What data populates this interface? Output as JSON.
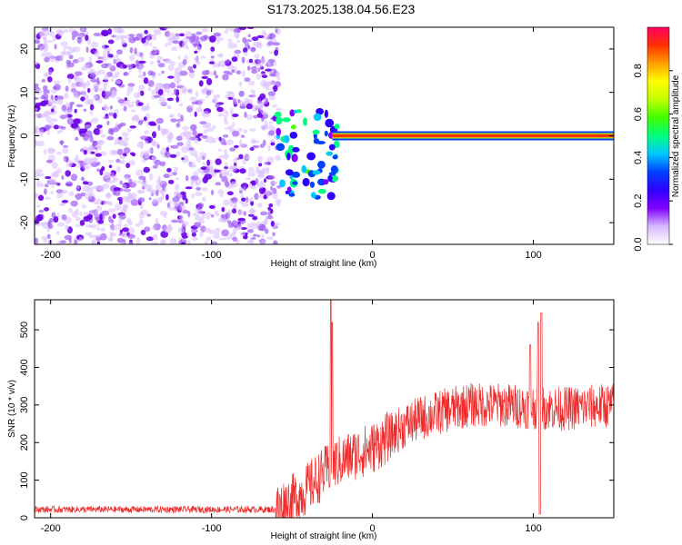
{
  "title": "S173.2025.138.04.56.E23",
  "chart_data": [
    {
      "type": "heatmap",
      "xlabel": "Height of straight line (km)",
      "ylabel": "Frequency (Hz)",
      "xlim": [
        -210,
        150
      ],
      "ylim": [
        -25,
        25
      ],
      "xticks": [
        -200,
        -100,
        0,
        100
      ],
      "yticks": [
        -20,
        -10,
        0,
        10,
        20
      ],
      "colorbar": {
        "label": "Normalized spectral amplitude",
        "range": [
          0,
          1
        ],
        "ticks": [
          "0.0",
          "0.2",
          "0.4",
          "0.6",
          "0.8"
        ],
        "colormap": [
          "#ffffff",
          "#d8b8ff",
          "#8000ff",
          "#3000ff",
          "#0040ff",
          "#00c8ff",
          "#00ff80",
          "#40ff00",
          "#c0ff00",
          "#ffff00",
          "#ffa000",
          "#ff3000",
          "#ff0060"
        ]
      },
      "regions": [
        {
          "name": "noise",
          "x": [
            -210,
            -58
          ],
          "freq": [
            -25,
            25
          ],
          "amplitude": 0.2
        },
        {
          "name": "transition",
          "x": [
            -60,
            -22
          ],
          "freq": [
            -15,
            6
          ],
          "amplitude": 0.5
        },
        {
          "name": "tone",
          "x": [
            -25,
            150
          ],
          "freq": [
            0,
            0
          ],
          "amplitude": 0.95
        }
      ]
    },
    {
      "type": "line",
      "xlabel": "Height of straight line (km)",
      "ylabel": "SNR (10 * v/v)",
      "xlim": [
        -210,
        150
      ],
      "ylim": [
        0,
        580
      ],
      "xticks": [
        -200,
        -100,
        0,
        100
      ],
      "yticks": [
        0,
        100,
        200,
        300,
        400,
        500
      ],
      "color": "#ee2a2a",
      "profile": [
        {
          "x": -210,
          "y": 22
        },
        {
          "x": -60,
          "y": 22
        },
        {
          "x": -45,
          "y": 60
        },
        {
          "x": -35,
          "y": 100
        },
        {
          "x": -25,
          "y": 140
        },
        {
          "x": -10,
          "y": 170
        },
        {
          "x": 0,
          "y": 185
        },
        {
          "x": 10,
          "y": 215
        },
        {
          "x": 20,
          "y": 245
        },
        {
          "x": 30,
          "y": 265
        },
        {
          "x": 45,
          "y": 285
        },
        {
          "x": 60,
          "y": 300
        },
        {
          "x": 80,
          "y": 300
        },
        {
          "x": 100,
          "y": 295
        },
        {
          "x": 120,
          "y": 290
        },
        {
          "x": 150,
          "y": 300
        }
      ],
      "spikes": [
        {
          "x": -26,
          "y": 578
        },
        {
          "x": -25,
          "y": 520
        },
        {
          "x": 98,
          "y": 460
        },
        {
          "x": 105,
          "y": 545
        },
        {
          "x": 103,
          "y": 520
        }
      ],
      "dips": [
        {
          "x": 104,
          "y": 10
        }
      ]
    }
  ]
}
